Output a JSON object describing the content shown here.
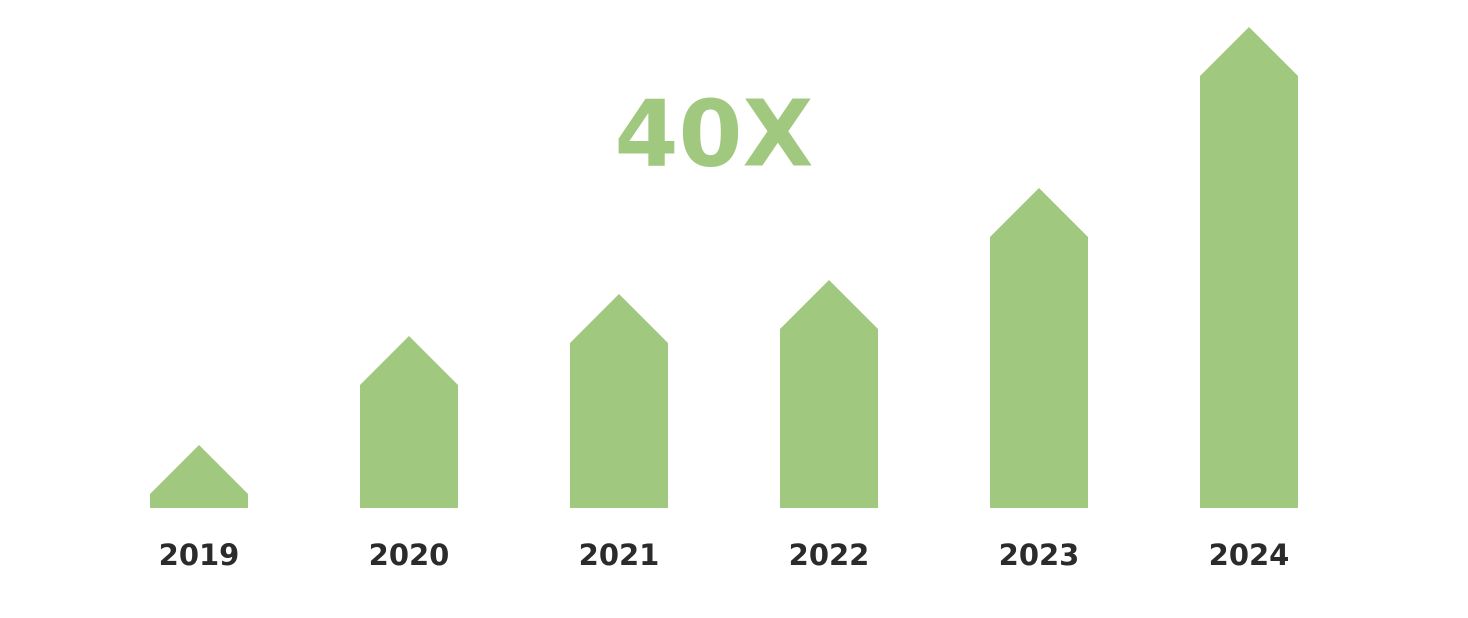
{
  "chart_data": {
    "type": "arrow-bar",
    "title": "40X",
    "categories": [
      "2019",
      "2020",
      "2021",
      "2022",
      "2023",
      "2024"
    ],
    "values": [
      63,
      172,
      214,
      228,
      320,
      481
    ],
    "color": "#a1c87f"
  }
}
